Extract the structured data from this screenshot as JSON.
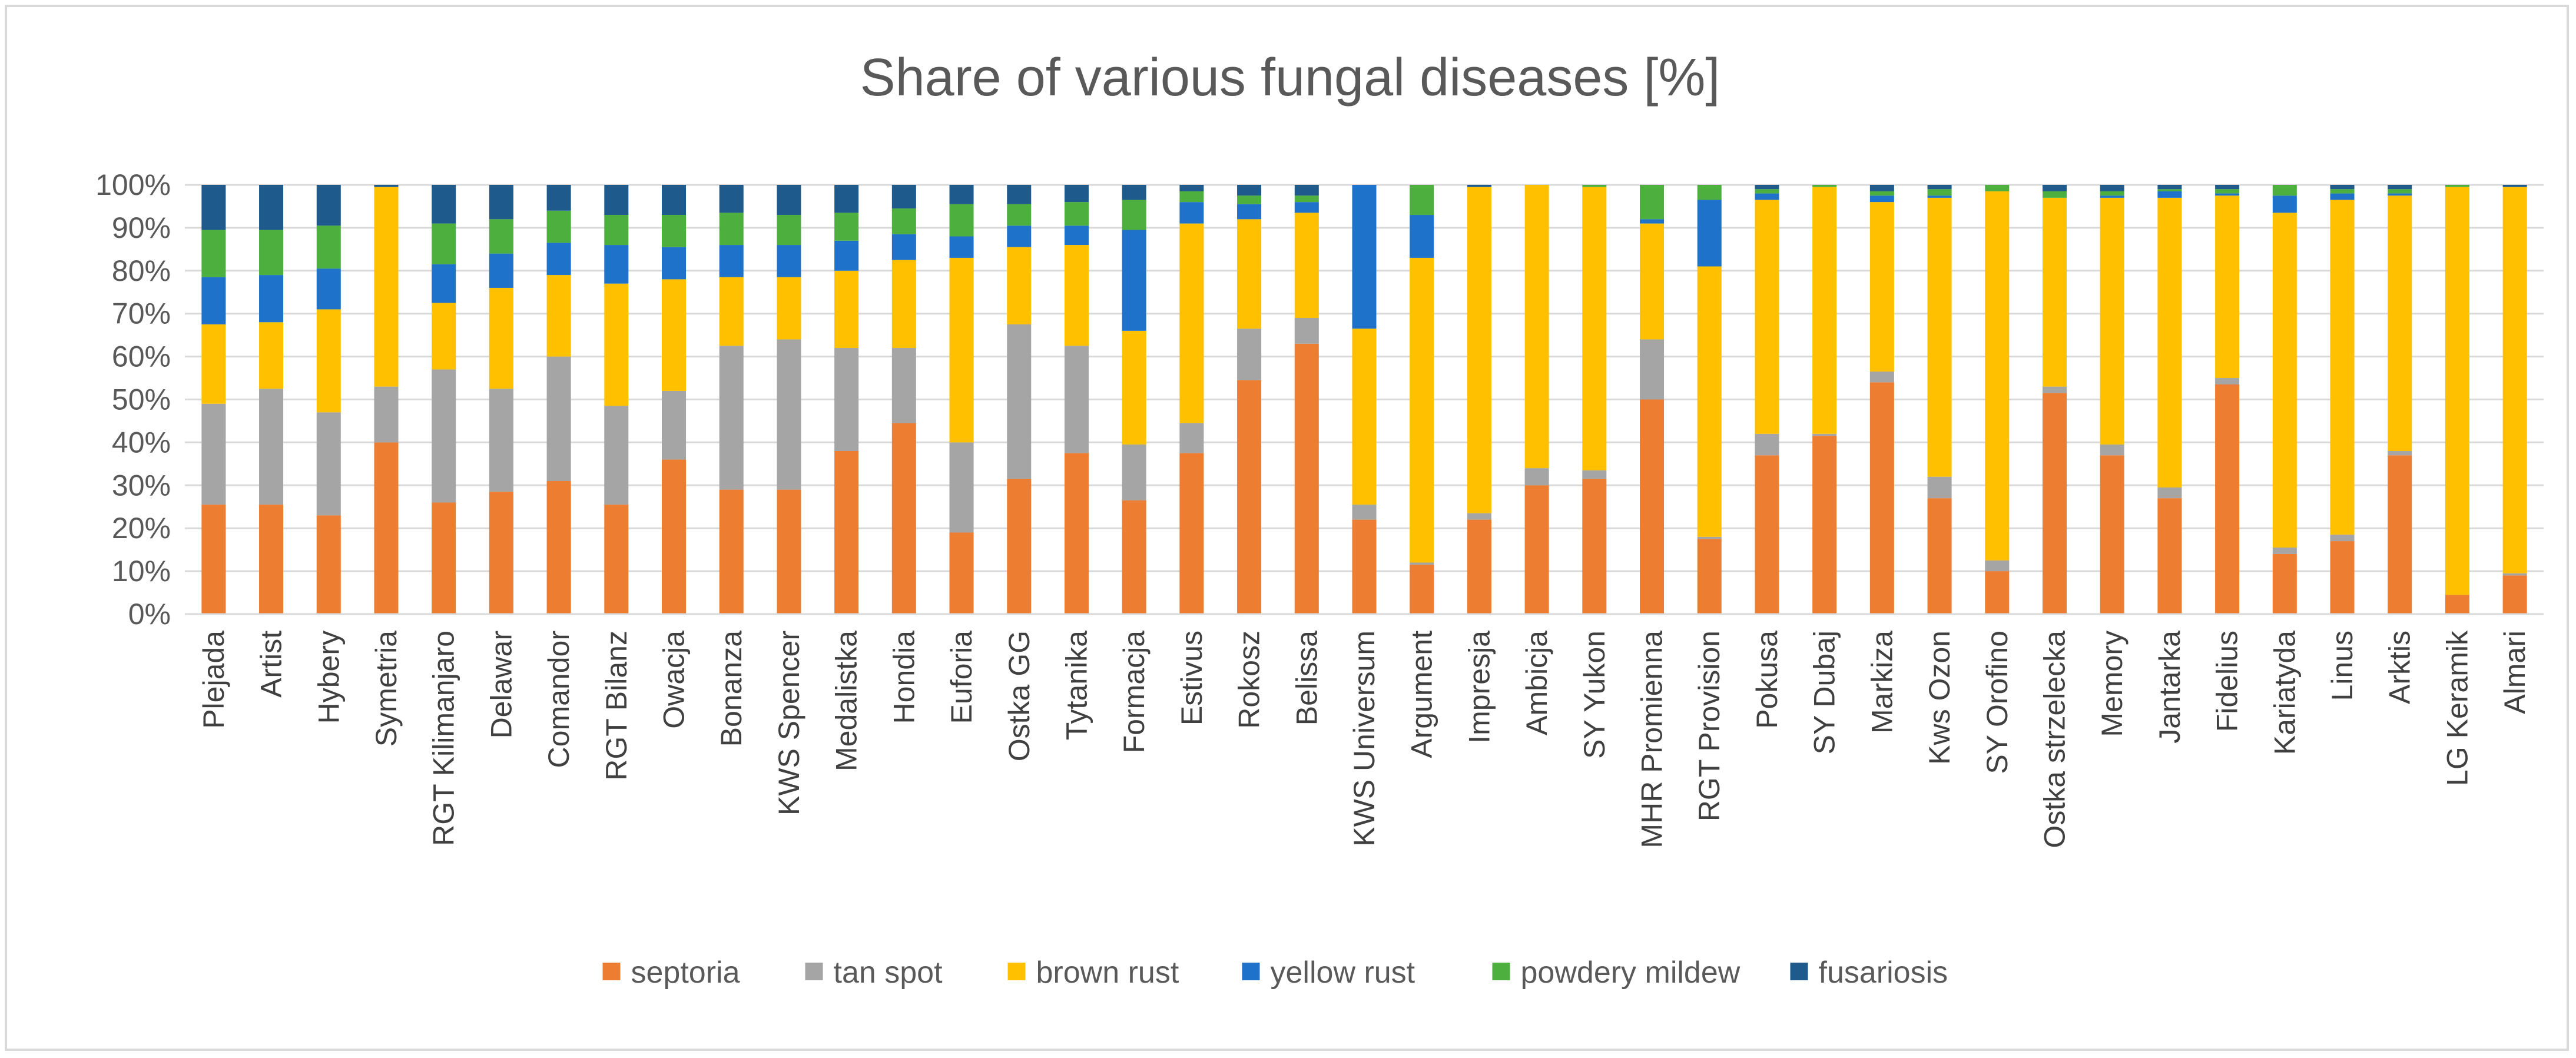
{
  "chart_data": {
    "type": "bar",
    "stacked": true,
    "percent": true,
    "title": "Share of various fungal diseases [%]",
    "xlabel": "",
    "ylabel": "",
    "ylim": [
      0,
      100
    ],
    "yticks": [
      "0%",
      "10%",
      "20%",
      "30%",
      "40%",
      "50%",
      "60%",
      "70%",
      "80%",
      "90%",
      "100%"
    ],
    "grid": true,
    "legend_position": "bottom",
    "categories": [
      "Plejada",
      "Artist",
      "Hybery",
      "Symetria",
      "RGT Kilimanjaro",
      "Delawar",
      "Comandor",
      "RGT Bilanz",
      "Owacja",
      "Bonanza",
      "KWS Spencer",
      "Medalistka",
      "Hondia",
      "Euforia",
      "Ostka GG",
      "Tytanika",
      "Formacja",
      "Estivus",
      "Rokosz",
      "Belissa",
      "KWS Universum",
      "Argument",
      "Impresja",
      "Ambicja",
      "SY Yukon",
      "MHR Promienna",
      "RGT Provision",
      "Pokusa",
      "SY Dubaj",
      "Markiza",
      "Kws Ozon",
      "SY Orofino",
      "Ostka strzelecka",
      "Memory",
      "Jantarka",
      "Fidelius",
      "Kariatyda",
      "Linus",
      "Arktis",
      "LG Keramik",
      "Almari"
    ],
    "series": [
      {
        "name": "septoria",
        "color": "#ED7D31",
        "values": [
          25.5,
          25.5,
          23,
          40,
          26,
          28.5,
          31,
          25.5,
          36,
          29,
          29,
          38,
          44.5,
          19,
          31.5,
          37.5,
          26.5,
          37.5,
          54.5,
          63,
          22,
          11.5,
          22,
          30,
          31.5,
          50,
          17.5,
          37,
          41.5,
          54,
          27,
          10,
          51.5,
          37,
          27,
          53.5,
          14,
          17,
          37,
          4.5,
          9
        ]
      },
      {
        "name": "tan spot",
        "color": "#A5A5A5",
        "values": [
          23.5,
          27,
          24,
          13,
          31,
          24,
          29,
          23,
          16,
          33.5,
          35,
          24,
          17.5,
          21,
          36,
          25,
          13,
          7,
          12,
          6,
          3.5,
          0.5,
          1.5,
          4,
          2,
          14,
          0.5,
          5,
          0.5,
          2.5,
          5,
          2.5,
          1.5,
          2.5,
          2.5,
          1.5,
          1.5,
          1.5,
          1,
          0,
          0.5
        ]
      },
      {
        "name": "brown rust",
        "color": "#FFC000",
        "values": [
          18.5,
          15.5,
          24,
          46.5,
          15.5,
          23.5,
          19,
          28.5,
          26,
          16,
          14.5,
          18,
          20.5,
          43,
          18,
          23.5,
          26.5,
          46.5,
          25.5,
          24.5,
          41,
          71,
          76,
          66,
          66,
          27,
          63,
          54.5,
          57.5,
          39.5,
          65,
          86,
          44,
          57.5,
          67.5,
          42.5,
          78,
          78,
          59.5,
          95,
          90
        ]
      },
      {
        "name": "yellow rust",
        "color": "#1F72C9",
        "values": [
          11,
          11,
          9.5,
          0,
          9,
          8,
          7.5,
          9,
          7.5,
          7.5,
          7.5,
          7,
          6,
          5,
          5,
          4.5,
          23.5,
          5,
          3.5,
          2.5,
          33.5,
          10,
          0,
          0.3,
          0,
          1,
          15.5,
          1.5,
          0,
          1.5,
          0.5,
          0,
          0,
          0.5,
          1.5,
          0.5,
          4,
          1.5,
          0.5,
          0,
          0
        ]
      },
      {
        "name": "powdery mildew",
        "color": "#4CAF3E",
        "values": [
          11,
          10.5,
          10,
          0,
          9.5,
          8,
          7.5,
          7,
          7.5,
          7.5,
          7,
          6.5,
          6,
          7.5,
          5,
          5.5,
          7,
          2.5,
          2,
          1.5,
          0,
          7,
          0,
          0,
          0.5,
          8,
          3.5,
          1,
          0.5,
          1,
          1.5,
          1.5,
          1.5,
          1,
          0.5,
          1,
          2.5,
          1,
          1,
          0.5,
          0
        ]
      },
      {
        "name": "fusariosis",
        "color": "#1E5B8C",
        "values": [
          10.5,
          10.5,
          9.5,
          0.5,
          9,
          8,
          6,
          7,
          7,
          6.5,
          7,
          6.5,
          5.5,
          4.5,
          4.5,
          4,
          3.5,
          1.5,
          2.5,
          2.5,
          0,
          0,
          0.5,
          0.2,
          0,
          0,
          0,
          1,
          0,
          1.5,
          1,
          0,
          1.5,
          1.5,
          1,
          1,
          0,
          1,
          1,
          0,
          0.5
        ]
      }
    ]
  }
}
